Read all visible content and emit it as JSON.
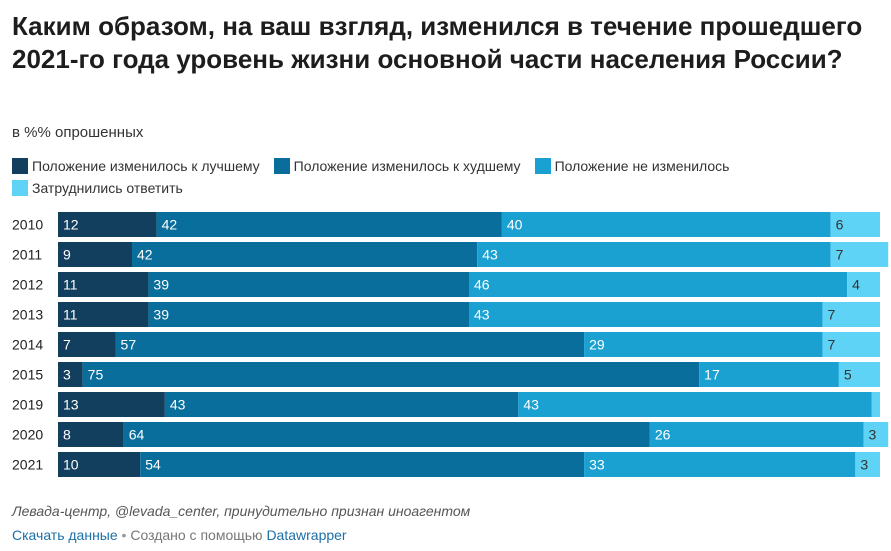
{
  "title": "Каким образом, на ваш взгляд, изменился в течение прошедшего 2021-го года уровень жизни основной части населения России?",
  "subtitle": "в %% опрошенных",
  "legend": [
    {
      "label": "Положение изменилось к лучшему",
      "color": "#123f5e"
    },
    {
      "label": "Положение изменилось к худшему",
      "color": "#0a6e9c"
    },
    {
      "label": "Положение не изменилось",
      "color": "#1aa1d2"
    },
    {
      "label": "Затруднились ответить",
      "color": "#5ed3f5"
    }
  ],
  "chart_data": {
    "type": "bar",
    "orientation": "horizontal",
    "stacked": true,
    "categories": [
      "2010",
      "2011",
      "2012",
      "2013",
      "2014",
      "2015",
      "2019",
      "2020",
      "2021"
    ],
    "series": [
      {
        "name": "Положение изменилось к лучшему",
        "color": "#123f5e",
        "values": [
          12,
          9,
          11,
          11,
          7,
          3,
          13,
          8,
          10
        ]
      },
      {
        "name": "Положение изменилось к худшему",
        "color": "#0a6e9c",
        "values": [
          42,
          42,
          39,
          39,
          57,
          75,
          43,
          64,
          54
        ]
      },
      {
        "name": "Положение не изменилось",
        "color": "#1aa1d2",
        "values": [
          40,
          43,
          46,
          43,
          29,
          17,
          43,
          26,
          33
        ]
      },
      {
        "name": "Затруднились ответить",
        "color": "#5ed3f5",
        "values": [
          6,
          7,
          4,
          7,
          7,
          5,
          1,
          3,
          3
        ]
      }
    ],
    "labels": [
      [
        "12",
        "42",
        "40",
        "6"
      ],
      [
        "9",
        "42",
        "43",
        "7"
      ],
      [
        "11",
        "39",
        "46",
        "4"
      ],
      [
        "11",
        "39",
        "43",
        "7"
      ],
      [
        "7",
        "57",
        "29",
        "7"
      ],
      [
        "3",
        "75",
        "17",
        "5"
      ],
      [
        "13",
        "43",
        "43",
        ""
      ],
      [
        "8",
        "64",
        "26",
        "3"
      ],
      [
        "10",
        "54",
        "33",
        "3"
      ]
    ],
    "label_colors": [
      "#ffffff",
      "#ffffff",
      "#ffffff",
      "#333333"
    ],
    "xlim": [
      0,
      100
    ],
    "grid": false,
    "legend_position": "top-left"
  },
  "footer": {
    "source": "Левада-центр, @levada_center, принудительно признан иноагентом",
    "download": "Скачать данные",
    "separator": "•",
    "created_with": "Создано с помощью",
    "tool": "Datawrapper"
  }
}
